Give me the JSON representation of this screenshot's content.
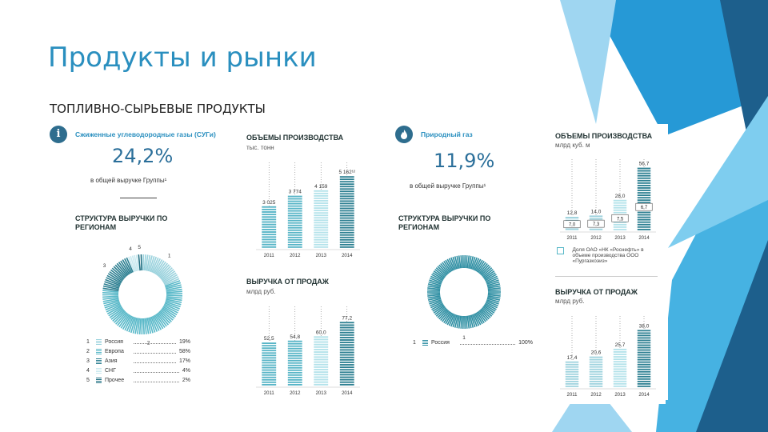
{
  "slide": {
    "title": "Продукты и рынки",
    "subtitle": "ТОПЛИВНО-СЫРЬЕВЫЕ ПРОДУКТЫ"
  },
  "colors": {
    "accent": "#2a8fbf",
    "dark_teal": "#2c7f91",
    "mid_teal": "#58b8c8",
    "light_teal": "#a9dce6",
    "deco_blue": "#29a6da",
    "deco_dark": "#1d5f8c"
  },
  "lpg": {
    "label": "Сжиженные углеводородные газы (СУГи)",
    "share": "24,2%",
    "share_caption": "в общей выручке Группы¹",
    "structure_title": "СТРУКТУРА ВЫРУЧКИ ПО РЕГИОНАМ",
    "legend": [
      {
        "num": "1",
        "name": "Россия",
        "pct": "19%"
      },
      {
        "num": "2",
        "name": "Европа",
        "pct": "58%"
      },
      {
        "num": "3",
        "name": "Азия",
        "pct": "17%"
      },
      {
        "num": "4",
        "name": "СНГ",
        "pct": "4%"
      },
      {
        "num": "5",
        "name": "Прочее",
        "pct": "2%"
      }
    ],
    "pie_labels": [
      "1",
      "2",
      "3",
      "4",
      "5"
    ]
  },
  "gas": {
    "label": "Природный газ",
    "share": "11,9%",
    "share_caption": "в общей выручке Группы¹",
    "structure_title": "СТРУКТУРА ВЫРУЧКИ ПО РЕГИОНАМ",
    "legend": [
      {
        "num": "1",
        "name": "Россия",
        "pct": "100%"
      }
    ],
    "pie_labels": [
      "1"
    ]
  },
  "lpg_production": {
    "title": "ОБЪЕМЫ ПРОИЗВОДСТВА",
    "unit": "тыс. тонн"
  },
  "lpg_revenue": {
    "title": "ВЫРУЧКА ОТ ПРОДАЖ",
    "unit": "млрд руб."
  },
  "gas_production": {
    "title": "ОБЪЕМЫ ПРОИЗВОДСТВА",
    "unit": "млрд куб. м",
    "legend_note": "Доля ОАО «НК «Роснефть» в объеме производства ООО «Пургазкоэиз»"
  },
  "gas_revenue": {
    "title": "ВЫРУЧКА ОТ ПРОДАЖ",
    "unit": "млрд руб."
  },
  "chart_data": [
    {
      "type": "bar",
      "title": "ОБЪЕМЫ ПРОИЗВОДСТВА",
      "ylabel": "тыс. тонн",
      "categories": [
        "2011",
        "2012",
        "2013",
        "2014"
      ],
      "values": [
        3025,
        3774,
        4159,
        5162
      ],
      "value_labels": [
        "3 025",
        "3 774",
        "4 159",
        "5 162¹²"
      ],
      "ylim": [
        0,
        5800
      ]
    },
    {
      "type": "bar",
      "title": "ВЫРУЧКА ОТ ПРОДАЖ",
      "ylabel": "млрд руб.",
      "categories": [
        "2011",
        "2012",
        "2013",
        "2014"
      ],
      "values": [
        52.5,
        54.8,
        60.0,
        77.2
      ],
      "value_labels": [
        "52,5",
        "54,8",
        "60,0",
        "77,2"
      ],
      "ylim": [
        0,
        90
      ]
    },
    {
      "type": "bar",
      "title": "ОБЪЕМЫ ПРОИЗВОДСТВА",
      "ylabel": "млрд куб. м",
      "categories": [
        "2011",
        "2012",
        "2013",
        "2014"
      ],
      "values": [
        12.8,
        14.0,
        28.0,
        56.7
      ],
      "value_labels": [
        "12,8",
        "14,0",
        "28,0",
        "56,7"
      ],
      "highlight_labels": [
        "7,0",
        "7,3",
        "7,5",
        "6,7"
      ],
      "ylim": [
        0,
        60
      ]
    },
    {
      "type": "bar",
      "title": "ВЫРУЧКА ОТ ПРОДАЖ",
      "ylabel": "млрд руб.",
      "categories": [
        "2011",
        "2012",
        "2013",
        "2014"
      ],
      "values": [
        17.4,
        20.6,
        25.7,
        38.0
      ],
      "value_labels": [
        "17,4",
        "20,6",
        "25,7",
        "38,0"
      ],
      "ylim": [
        0,
        44
      ]
    }
  ],
  "pies": [
    {
      "name": "lpg_regions",
      "values": [
        19,
        58,
        17,
        4,
        2
      ]
    },
    {
      "name": "gas_regions",
      "values": [
        100
      ]
    }
  ]
}
